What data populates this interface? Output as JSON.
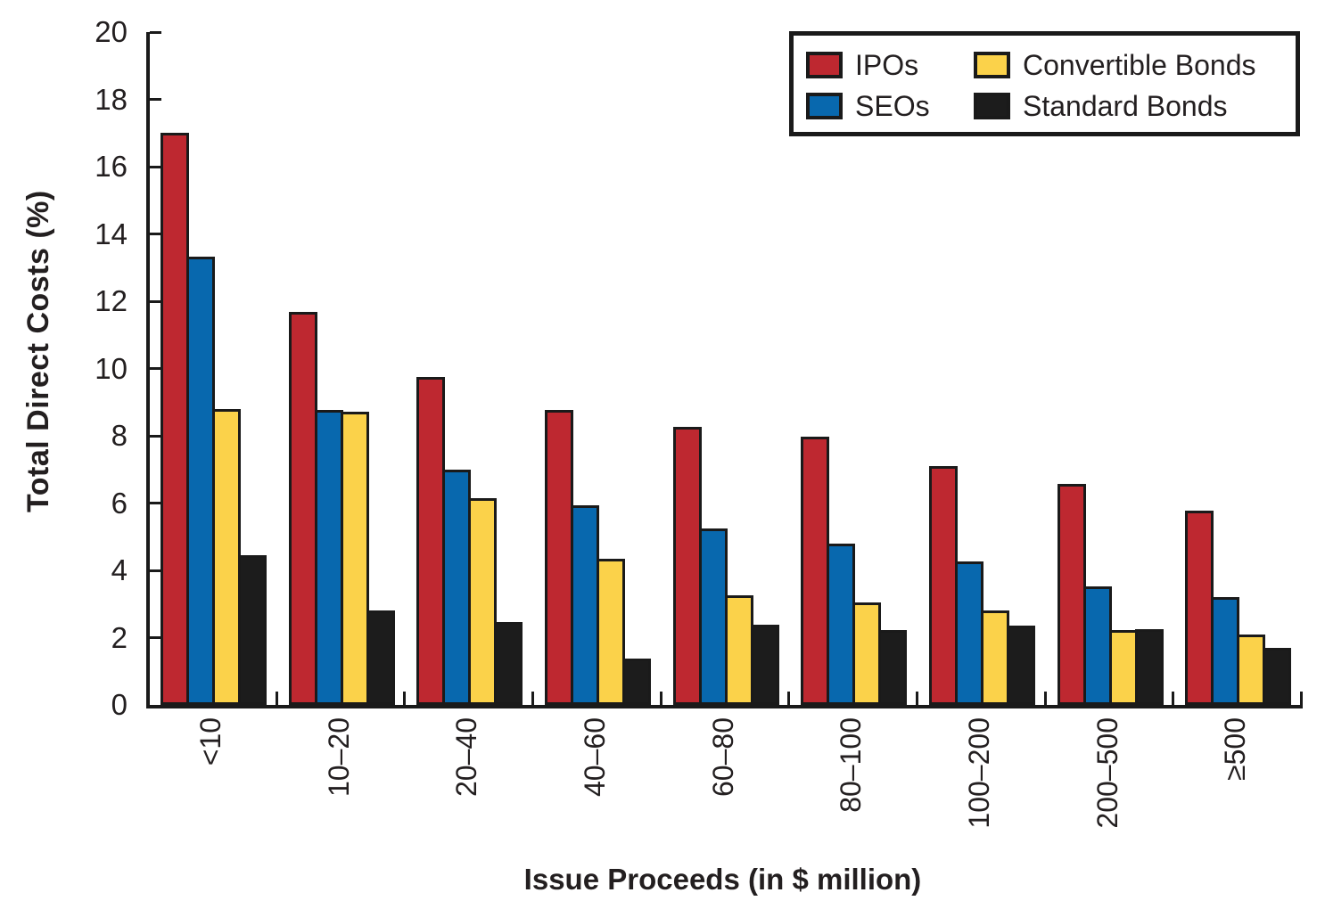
{
  "chart_data": {
    "type": "bar",
    "title": "",
    "xlabel": "Issue Proceeds (in $ million)",
    "ylabel": "Total Direct Costs (%)",
    "categories": [
      "<10",
      "10–20",
      "20–40",
      "40–60",
      "60–80",
      "80–100",
      "100–200",
      "200–500",
      "≥500"
    ],
    "series": [
      {
        "name": "IPOs",
        "color": "#BE2830",
        "values": [
          16.96,
          11.63,
          9.7,
          8.72,
          8.2,
          7.91,
          7.06,
          6.53,
          5.72
        ]
      },
      {
        "name": "SEOs",
        "color": "#0868AE",
        "values": [
          13.28,
          8.72,
          6.93,
          5.87,
          5.18,
          4.73,
          4.22,
          3.47,
          3.15
        ]
      },
      {
        "name": "Convertible Bonds",
        "color": "#FBD24A",
        "values": [
          8.75,
          8.65,
          6.1,
          4.28,
          3.2,
          2.99,
          2.76,
          2.16,
          2.04
        ]
      },
      {
        "name": "Standard Bonds",
        "color": "#1C1C1C",
        "values": [
          4.39,
          2.76,
          2.42,
          1.32,
          2.34,
          2.16,
          2.31,
          2.19,
          1.64
        ]
      }
    ],
    "ylim": [
      0,
      20
    ],
    "yticks": [
      0,
      2,
      4,
      6,
      8,
      10,
      12,
      14,
      16,
      18,
      20
    ],
    "grid": false,
    "legend_position": "top-right",
    "colors": {
      "axis": "#1a1a1a",
      "text": "#231f20",
      "background": "#ffffff"
    }
  }
}
